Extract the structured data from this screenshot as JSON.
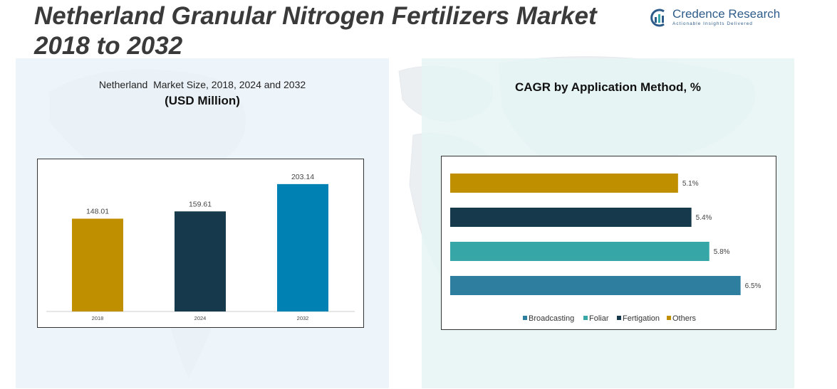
{
  "header": {
    "title_line1": "Netherland Granular Nitrogen Fertilizers Market",
    "title_line2": "2018 to 2032",
    "brand_name": "Credence Research",
    "brand_tagline": "Actionable Insights Delivered"
  },
  "left_panel": {
    "subtitle": "Netherland  Market Size, 2018, 2024 and 2032",
    "unit": "(USD Million)"
  },
  "right_panel": {
    "title": "CAGR by Application Method, %"
  },
  "colors": {
    "bar_2018": "#bf8f00",
    "bar_2024": "#17394c",
    "bar_2032": "#0081b4",
    "broadcasting": "#2e7ea0",
    "foliar": "#37a6a6",
    "fertigation": "#17394c",
    "others": "#bf8f00"
  },
  "chart_data": [
    {
      "type": "bar",
      "title": "Netherland  Market Size, 2018, 2024 and 2032",
      "ylabel": "(USD Million)",
      "categories": [
        "2018",
        "2024",
        "2032"
      ],
      "values": [
        148.01,
        159.61,
        203.14
      ],
      "value_labels": [
        "148.01",
        "159.61",
        "203.14"
      ],
      "ylim": [
        0,
        220
      ],
      "grid": false
    },
    {
      "type": "bar",
      "orientation": "horizontal",
      "title": "CAGR by Application Method, %",
      "categories": [
        "Others",
        "Fertigation",
        "Foliar",
        "Broadcasting"
      ],
      "values": [
        5.1,
        5.4,
        5.8,
        6.5
      ],
      "value_labels": [
        "5.1%",
        "5.4%",
        "5.8%",
        "6.5%"
      ],
      "xlim": [
        0,
        7.0
      ],
      "legend": [
        "Broadcasting",
        "Foliar",
        "Fertigation",
        "Others"
      ],
      "legend_position": "bottom",
      "grid": false
    }
  ]
}
